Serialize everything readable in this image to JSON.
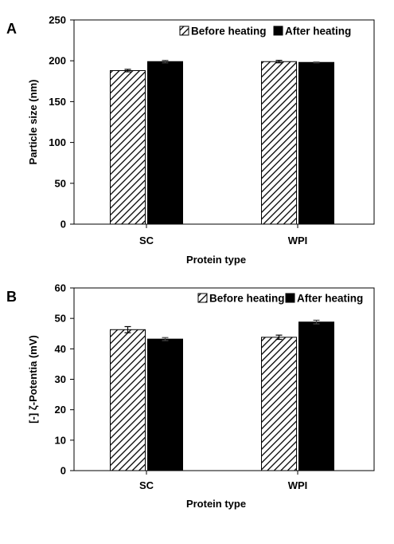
{
  "chart_data": [
    {
      "type": "bar",
      "panel_label": "A",
      "categories": [
        "SC",
        "WPI"
      ],
      "series": [
        {
          "name": "Before heating",
          "values": [
            188,
            199
          ],
          "errors": [
            1.5,
            1.5
          ],
          "pattern": "diagonal-hatch"
        },
        {
          "name": "After heating",
          "values": [
            199,
            198
          ],
          "errors": [
            1.5,
            0.5
          ],
          "color": "#000000"
        }
      ],
      "xlabel": "Protein type",
      "ylabel": "Particle size (nm)",
      "ylim": [
        0,
        250
      ],
      "yticks": [
        0,
        50,
        100,
        150,
        200,
        250
      ],
      "grid": false,
      "legend_position": "top-right"
    },
    {
      "type": "bar",
      "panel_label": "B",
      "categories": [
        "SC",
        "WPI"
      ],
      "series": [
        {
          "name": "Before heating",
          "values": [
            46.3,
            43.8
          ],
          "errors": [
            1.0,
            0.7
          ],
          "pattern": "diagonal-hatch"
        },
        {
          "name": "After heating",
          "values": [
            43.2,
            48.8
          ],
          "errors": [
            0.5,
            0.6
          ],
          "color": "#000000"
        }
      ],
      "xlabel": "Protein type",
      "ylabel": "[-] ζ-Potentia (mV)",
      "ylim": [
        0,
        60
      ],
      "yticks": [
        0,
        10,
        20,
        30,
        40,
        50,
        60
      ],
      "grid": false,
      "legend_position": "top-right"
    }
  ]
}
